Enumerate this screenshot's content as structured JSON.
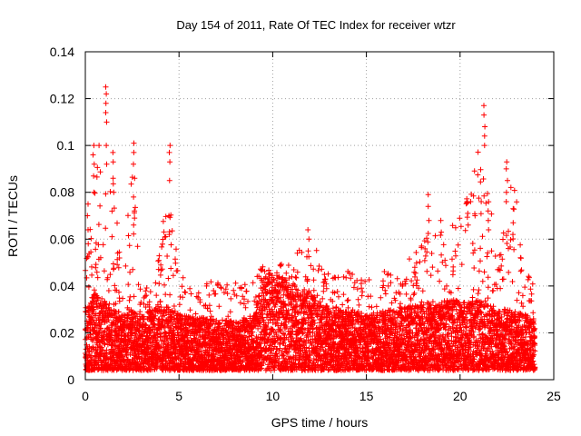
{
  "chart_data": {
    "type": "scatter",
    "title": "Day 154 of 2011, Rate Of TEC Index for receiver wtzr",
    "xlabel": "GPS time / hours",
    "ylabel": "ROTI / TECUs",
    "xlim": [
      0,
      25
    ],
    "ylim": [
      0,
      0.14
    ],
    "x_ticks": [
      "0",
      "5",
      "10",
      "15",
      "20",
      "25"
    ],
    "y_ticks": [
      "0",
      "0.02",
      "0.04",
      "0.06",
      "0.08",
      "0.1",
      "0.12",
      "0.14"
    ],
    "grid": true,
    "marker": "plus",
    "color": "#ff0000",
    "x_range": [
      0,
      24
    ],
    "sample_interval_hours": 0.00833,
    "envelope": [
      {
        "x": 0.0,
        "typical": 0.018,
        "high": 0.05
      },
      {
        "x": 0.5,
        "typical": 0.022,
        "high": 0.099
      },
      {
        "x": 1.0,
        "typical": 0.02,
        "high": 0.124
      },
      {
        "x": 1.5,
        "typical": 0.018,
        "high": 0.095
      },
      {
        "x": 2.0,
        "typical": 0.016,
        "high": 0.05
      },
      {
        "x": 2.5,
        "typical": 0.017,
        "high": 0.101
      },
      {
        "x": 3.0,
        "typical": 0.016,
        "high": 0.045
      },
      {
        "x": 3.5,
        "typical": 0.017,
        "high": 0.04
      },
      {
        "x": 4.0,
        "typical": 0.018,
        "high": 0.06
      },
      {
        "x": 4.5,
        "typical": 0.018,
        "high": 0.1
      },
      {
        "x": 5.0,
        "typical": 0.016,
        "high": 0.05
      },
      {
        "x": 6.0,
        "typical": 0.015,
        "high": 0.04
      },
      {
        "x": 7.0,
        "typical": 0.015,
        "high": 0.048
      },
      {
        "x": 8.0,
        "typical": 0.014,
        "high": 0.045
      },
      {
        "x": 9.0,
        "typical": 0.016,
        "high": 0.045
      },
      {
        "x": 9.5,
        "typical": 0.028,
        "high": 0.052
      },
      {
        "x": 10.0,
        "typical": 0.028,
        "high": 0.05
      },
      {
        "x": 11.0,
        "typical": 0.025,
        "high": 0.055
      },
      {
        "x": 12.0,
        "typical": 0.022,
        "high": 0.064
      },
      {
        "x": 13.0,
        "typical": 0.018,
        "high": 0.05
      },
      {
        "x": 14.0,
        "typical": 0.017,
        "high": 0.05
      },
      {
        "x": 15.0,
        "typical": 0.016,
        "high": 0.045
      },
      {
        "x": 16.0,
        "typical": 0.017,
        "high": 0.05
      },
      {
        "x": 17.0,
        "typical": 0.018,
        "high": 0.05
      },
      {
        "x": 18.0,
        "typical": 0.019,
        "high": 0.07
      },
      {
        "x": 19.0,
        "typical": 0.02,
        "high": 0.068
      },
      {
        "x": 20.0,
        "typical": 0.02,
        "high": 0.076
      },
      {
        "x": 21.0,
        "typical": 0.02,
        "high": 0.116
      },
      {
        "x": 22.0,
        "typical": 0.018,
        "high": 0.06
      },
      {
        "x": 22.8,
        "typical": 0.017,
        "high": 0.093
      },
      {
        "x": 24.0,
        "typical": 0.015,
        "high": 0.04
      }
    ],
    "spikes": [
      {
        "x": 0.15,
        "values": [
          0.058,
          0.064,
          0.07,
          0.075
        ]
      },
      {
        "x": 0.45,
        "values": [
          0.08,
          0.087,
          0.092,
          0.096,
          0.1
        ]
      },
      {
        "x": 1.1,
        "values": [
          0.092,
          0.1,
          0.11,
          0.114,
          0.118,
          0.122,
          0.125
        ]
      },
      {
        "x": 1.5,
        "values": [
          0.08,
          0.086,
          0.093,
          0.097
        ]
      },
      {
        "x": 2.6,
        "values": [
          0.066,
          0.072,
          0.078,
          0.086,
          0.092,
          0.097,
          0.101
        ]
      },
      {
        "x": 4.5,
        "values": [
          0.062,
          0.07,
          0.085,
          0.093,
          0.097,
          0.1
        ]
      },
      {
        "x": 11.9,
        "values": [
          0.055,
          0.06,
          0.064
        ]
      },
      {
        "x": 18.3,
        "values": [
          0.068,
          0.074,
          0.079
        ]
      },
      {
        "x": 19.0,
        "values": [
          0.063,
          0.068
        ]
      },
      {
        "x": 20.4,
        "values": [
          0.066,
          0.071,
          0.076
        ]
      },
      {
        "x": 21.3,
        "values": [
          0.1,
          0.104,
          0.108,
          0.113,
          0.117
        ]
      },
      {
        "x": 21.5,
        "values": [
          0.064,
          0.068,
          0.072
        ]
      },
      {
        "x": 22.5,
        "values": [
          0.076,
          0.08,
          0.085,
          0.09,
          0.093
        ]
      },
      {
        "x": 22.8,
        "values": [
          0.062,
          0.067,
          0.073
        ]
      }
    ]
  }
}
